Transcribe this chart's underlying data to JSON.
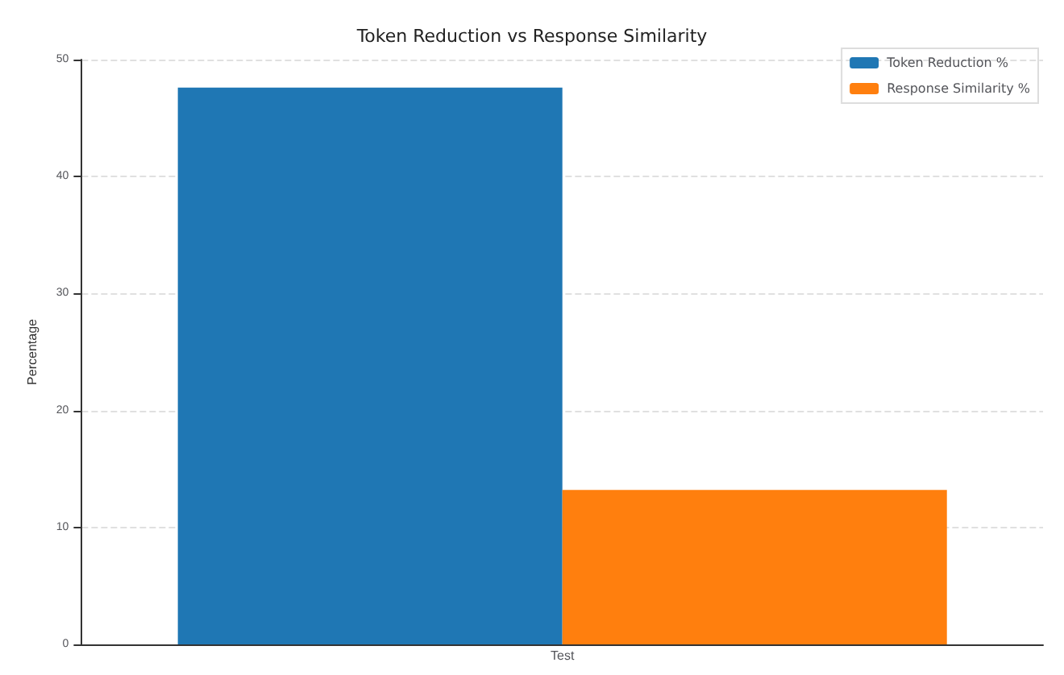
{
  "chart_data": {
    "type": "bar",
    "title": "Token Reduction vs Response Similarity",
    "ylabel": "Percentage",
    "categories": [
      "Test"
    ],
    "series": [
      {
        "name": "Token Reduction %",
        "color": "#1f77b4",
        "values": [
          47.6
        ]
      },
      {
        "name": "Response Similarity %",
        "color": "#ff7f0e",
        "values": [
          13.2
        ]
      }
    ],
    "ylim": [
      0,
      50
    ],
    "yticks": [
      0,
      10,
      20,
      30,
      40,
      50
    ],
    "grid": "y",
    "legend": "top right"
  }
}
